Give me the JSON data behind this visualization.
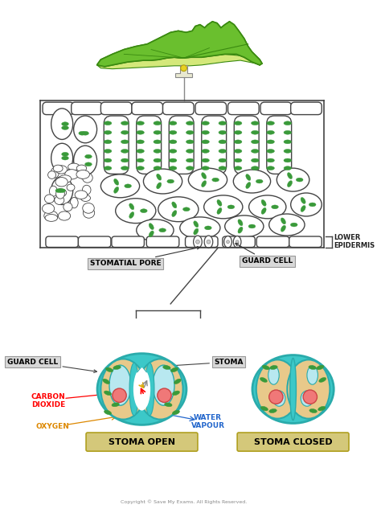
{
  "background_color": "#ffffff",
  "leaf_green": "#6abf2e",
  "leaf_light": "#d4e87a",
  "cell_outline": "#444444",
  "chloroplast_color": "#3a9a3a",
  "teal_color": "#3cc8c8",
  "teal_dark": "#2aabab",
  "sand_color": "#e8c98a",
  "light_blue": "#b8e8f0",
  "pink_color": "#f07878",
  "pink_dark": "#cc4444",
  "label_box_color": "#d4c87a",
  "label_box_ec": "#b0a020",
  "ann_box_fc": "#d8d8d8",
  "ann_box_ec": "#999999",
  "stoma_open_label": "STOMA OPEN",
  "stoma_closed_label": "STOMA CLOSED",
  "guard_cell_label": "GUARD CELL",
  "stoma_label": "STOMA",
  "carbon_dioxide_label": "CARBON\nDIOXIDE",
  "oxygen_label": "OXYGEN",
  "water_vapour_label": "WATER\nVAPOUR",
  "lower_epidermis_label": "LOWER\nEPIDERMIS",
  "stomatial_pore_label": "STOMATIAL PORE",
  "guard_cell_label2": "GUARD CELL",
  "copyright": "Copyright © Save My Exams. All Rights Reserved."
}
